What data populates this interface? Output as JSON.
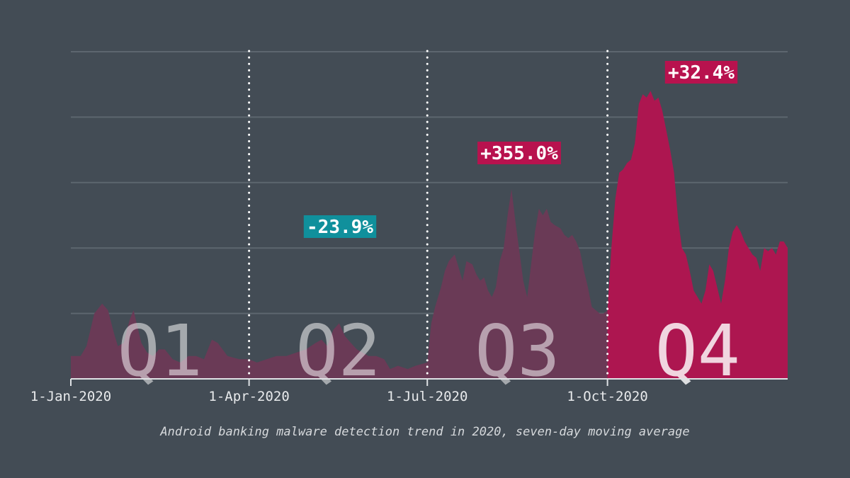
{
  "chart_data": {
    "type": "area",
    "caption": "Android banking malware detection trend in 2020, seven-day moving average",
    "x_ticks": [
      "1-Jan-2020",
      "1-Apr-2020",
      "1-Jul-2020",
      "1-Oct-2020"
    ],
    "grid": true,
    "yaxis_labels_shown": false,
    "colors": {
      "background": "#434c55",
      "area_q1_q3": "#6a3a56",
      "area_q4": "#ad1650",
      "negative": "#10909c",
      "positive": "#b8124e",
      "gridline": "#5d666f",
      "quarter_label": "#ffffff"
    },
    "quarters": [
      {
        "label": "Q1",
        "start_day": 0,
        "end_day": 91,
        "change": ""
      },
      {
        "label": "Q2",
        "start_day": 91,
        "end_day": 182,
        "change": "-23.9%",
        "change_sign": "negative"
      },
      {
        "label": "Q3",
        "start_day": 182,
        "end_day": 274,
        "change": "+355.0%",
        "change_sign": "positive"
      },
      {
        "label": "Q4",
        "start_day": 274,
        "end_day": 366,
        "change": "+32.4%",
        "change_sign": "positive"
      }
    ],
    "series": [
      {
        "points": [
          [
            0,
            7
          ],
          [
            5,
            7
          ],
          [
            8,
            10
          ],
          [
            12,
            20
          ],
          [
            16,
            23
          ],
          [
            19,
            21
          ],
          [
            22,
            14
          ],
          [
            24,
            10
          ],
          [
            27,
            11
          ],
          [
            30,
            18
          ],
          [
            32,
            21
          ],
          [
            34,
            16
          ],
          [
            36,
            11
          ],
          [
            39,
            8
          ],
          [
            42,
            7
          ],
          [
            45,
            9
          ],
          [
            48,
            9
          ],
          [
            52,
            6
          ],
          [
            56,
            5
          ],
          [
            60,
            7
          ],
          [
            64,
            7
          ],
          [
            68,
            6
          ],
          [
            72,
            12
          ],
          [
            75,
            11
          ],
          [
            80,
            7
          ],
          [
            86,
            6
          ],
          [
            91,
            6
          ],
          [
            95,
            5
          ],
          [
            100,
            6
          ],
          [
            105,
            7
          ],
          [
            110,
            7
          ],
          [
            115,
            8
          ],
          [
            120,
            9
          ],
          [
            125,
            11
          ],
          [
            128,
            12
          ],
          [
            131,
            10
          ],
          [
            134,
            15
          ],
          [
            137,
            17
          ],
          [
            140,
            13
          ],
          [
            143,
            11
          ],
          [
            146,
            9
          ],
          [
            149,
            8
          ],
          [
            152,
            7
          ],
          [
            156,
            7
          ],
          [
            160,
            6
          ],
          [
            163,
            3
          ],
          [
            167,
            4
          ],
          [
            172,
            3
          ],
          [
            176,
            4
          ],
          [
            182,
            5
          ],
          [
            184,
            17
          ],
          [
            186,
            22
          ],
          [
            189,
            28
          ],
          [
            191,
            33
          ],
          [
            193,
            36
          ],
          [
            196,
            38
          ],
          [
            198,
            34
          ],
          [
            200,
            30
          ],
          [
            202,
            36
          ],
          [
            205,
            35
          ],
          [
            207,
            32
          ],
          [
            209,
            30
          ],
          [
            211,
            31
          ],
          [
            213,
            27
          ],
          [
            215,
            25
          ],
          [
            217,
            28
          ],
          [
            219,
            36
          ],
          [
            221,
            40
          ],
          [
            223,
            50
          ],
          [
            225,
            58
          ],
          [
            227,
            48
          ],
          [
            229,
            39
          ],
          [
            231,
            30
          ],
          [
            233,
            25
          ],
          [
            235,
            35
          ],
          [
            237,
            45
          ],
          [
            239,
            52
          ],
          [
            241,
            50
          ],
          [
            243,
            52
          ],
          [
            245,
            48
          ],
          [
            247,
            47
          ],
          [
            250,
            46
          ],
          [
            252,
            44
          ],
          [
            254,
            43
          ],
          [
            256,
            44
          ],
          [
            258,
            42
          ],
          [
            260,
            39
          ],
          [
            262,
            33
          ],
          [
            264,
            28
          ],
          [
            266,
            22
          ],
          [
            268,
            21
          ],
          [
            270,
            20
          ],
          [
            272,
            20
          ],
          [
            274,
            21
          ],
          [
            276,
            40
          ],
          [
            278,
            55
          ],
          [
            280,
            63
          ],
          [
            282,
            64
          ],
          [
            284,
            66
          ],
          [
            286,
            67
          ],
          [
            288,
            72
          ],
          [
            290,
            84
          ],
          [
            292,
            87
          ],
          [
            294,
            86
          ],
          [
            296,
            88
          ],
          [
            298,
            85
          ],
          [
            300,
            86
          ],
          [
            302,
            82
          ],
          [
            304,
            76
          ],
          [
            306,
            70
          ],
          [
            308,
            63
          ],
          [
            310,
            49
          ],
          [
            312,
            40
          ],
          [
            314,
            38
          ],
          [
            316,
            33
          ],
          [
            318,
            27
          ],
          [
            320,
            25
          ],
          [
            322,
            23
          ],
          [
            324,
            27
          ],
          [
            326,
            35
          ],
          [
            328,
            33
          ],
          [
            330,
            28
          ],
          [
            332,
            23
          ],
          [
            334,
            30
          ],
          [
            336,
            40
          ],
          [
            338,
            45
          ],
          [
            340,
            47
          ],
          [
            342,
            45
          ],
          [
            344,
            42
          ],
          [
            346,
            40
          ],
          [
            348,
            38
          ],
          [
            350,
            37
          ],
          [
            352,
            33
          ],
          [
            354,
            40
          ],
          [
            356,
            39
          ],
          [
            358,
            40
          ],
          [
            360,
            38
          ],
          [
            362,
            42
          ],
          [
            364,
            42
          ],
          [
            366,
            40
          ]
        ]
      }
    ]
  }
}
